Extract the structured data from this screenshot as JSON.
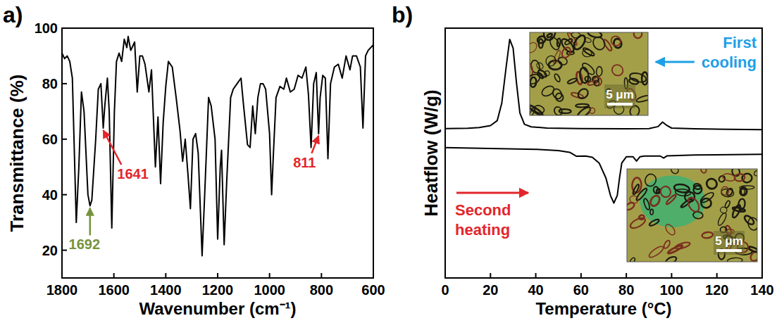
{
  "chart_data": [
    {
      "type": "line",
      "panel_label": "a)",
      "x_label": "Wavenumber (cm⁻¹)",
      "y_label": "Transmittance (%)",
      "x": [
        1800,
        1790,
        1780,
        1770,
        1760,
        1745,
        1735,
        1725,
        1715,
        1700,
        1692,
        1685,
        1670,
        1660,
        1650,
        1641,
        1635,
        1625,
        1618,
        1608,
        1598,
        1590,
        1580,
        1570,
        1560,
        1550,
        1545,
        1535,
        1520,
        1510,
        1500,
        1490,
        1480,
        1465,
        1455,
        1440,
        1430,
        1420,
        1410,
        1400,
        1390,
        1375,
        1360,
        1345,
        1335,
        1325,
        1315,
        1305,
        1295,
        1285,
        1275,
        1260,
        1250,
        1235,
        1225,
        1210,
        1200,
        1190,
        1185,
        1175,
        1165,
        1150,
        1140,
        1125,
        1110,
        1100,
        1085,
        1075,
        1065,
        1055,
        1045,
        1035,
        1025,
        1015,
        1000,
        992,
        985,
        975,
        960,
        945,
        935,
        920,
        905,
        890,
        875,
        860,
        850,
        840,
        830,
        820,
        811,
        805,
        795,
        785,
        775,
        765,
        750,
        735,
        720,
        705,
        690,
        680,
        665,
        650,
        640,
        630,
        620,
        600
      ],
      "values": [
        91,
        89,
        90,
        88,
        82,
        30,
        50,
        77,
        70,
        40,
        36,
        38,
        60,
        78,
        80,
        64,
        72,
        82,
        70,
        28,
        70,
        88,
        91,
        88,
        96,
        93,
        97,
        92,
        95,
        77,
        90,
        90,
        87,
        77,
        85,
        50,
        68,
        44,
        66,
        79,
        88,
        86,
        75,
        63,
        52,
        60,
        48,
        35,
        60,
        62,
        55,
        18,
        40,
        75,
        72,
        60,
        24,
        50,
        56,
        22,
        45,
        75,
        78,
        80,
        82,
        72,
        58,
        57,
        72,
        62,
        75,
        80,
        80,
        78,
        62,
        40,
        55,
        75,
        79,
        78,
        82,
        77,
        78,
        83,
        82,
        86,
        76,
        57,
        80,
        84,
        62,
        75,
        83,
        82,
        53,
        80,
        86,
        87,
        82,
        90,
        85,
        90,
        90,
        86,
        64,
        90,
        92,
        94
      ],
      "color": "#000000",
      "xlim": [
        1800,
        600
      ],
      "xticks": [
        1800,
        1600,
        1400,
        1200,
        1000,
        800,
        600
      ],
      "ylim": [
        10,
        100
      ],
      "yticks": [
        20,
        40,
        60,
        80,
        100
      ],
      "grid": false,
      "annotations": [
        {
          "text": "1692",
          "color": "#76933c"
        },
        {
          "text": "1641",
          "color": "#e3262b"
        },
        {
          "text": "811",
          "color": "#e3262b"
        }
      ]
    },
    {
      "type": "line",
      "panel_label": "b)",
      "x_label": "Temperature (°C)",
      "y_label": "Heatflow (W/g)",
      "series": [
        {
          "name": "First cooling",
          "color": "#000000",
          "x": [
            0,
            10,
            15,
            20,
            23,
            25,
            27,
            28.5,
            30,
            31.5,
            33,
            35,
            38,
            45,
            60,
            80,
            90,
            94,
            96,
            98,
            100,
            110,
            125,
            140
          ],
          "values": [
            59.8,
            59.9,
            60.2,
            61,
            63,
            70,
            85,
            95.5,
            92,
            78,
            66,
            61.5,
            60.5,
            60,
            59.8,
            59.7,
            59.8,
            60.6,
            62.4,
            61,
            60,
            59.7,
            59.5,
            59.4
          ]
        },
        {
          "name": "Second heating",
          "color": "#000000",
          "x": [
            0,
            20,
            40,
            50,
            55,
            58,
            62,
            65,
            68,
            71,
            73,
            74.5,
            76,
            77,
            78,
            80,
            83,
            84.5,
            86,
            88,
            95,
            96.5,
            98,
            110,
            140
          ],
          "values": [
            52.2,
            51.8,
            51.5,
            51,
            50.3,
            48.7,
            48.8,
            48.3,
            46,
            40,
            33,
            30,
            33,
            40,
            46,
            48.5,
            48.5,
            46.8,
            48.5,
            48.8,
            48.8,
            48,
            48.9,
            49.2,
            49.5
          ]
        }
      ],
      "xlim": [
        0,
        140
      ],
      "xticks": [
        0,
        20,
        40,
        60,
        80,
        100,
        120,
        140
      ],
      "ylim": [
        0,
        100
      ],
      "yticks": [],
      "tick_labels": "x",
      "grid": false,
      "insets": [
        {
          "scale_label": "5 μm"
        },
        {
          "scale_label": "5 μm"
        }
      ]
    }
  ]
}
